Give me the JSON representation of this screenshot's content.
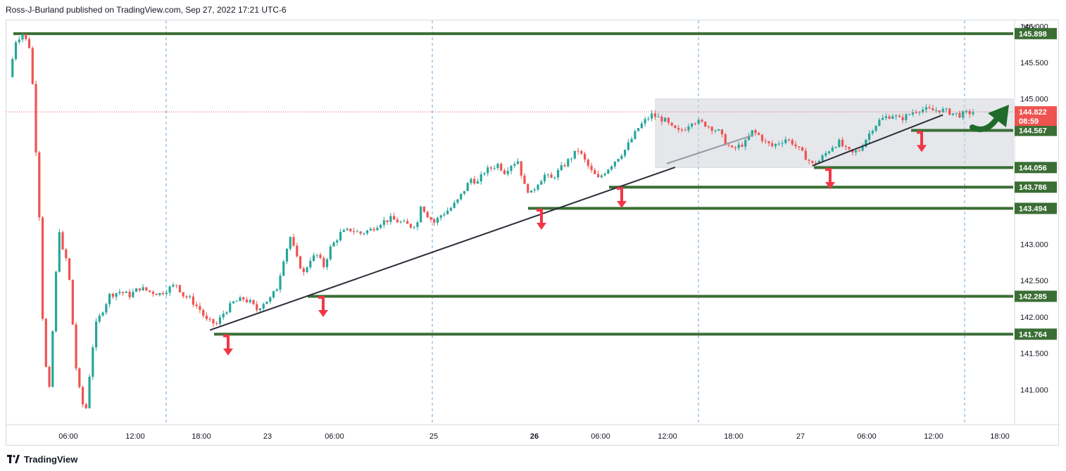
{
  "header": {
    "text": "Ross-J-Burland published on TradingView.com, Sep 27, 2022 17:21 UTC-6"
  },
  "footer": {
    "brand": "TradingView",
    "logo_icon": "tradingview-logo-icon"
  },
  "colors": {
    "level": "#3b6e35",
    "up": "#26a69a",
    "down": "#ef5350",
    "trendline": "#2a2e39",
    "range_fill": "#d1d4dc",
    "arrow_red": "#f23645",
    "arrow_green": "#1f6b2a",
    "grid_dash": "#2a7fcf"
  },
  "chart_data": {
    "type": "candlestick",
    "currency": "JPY",
    "y_ticks": [
      "146.000",
      "145.500",
      "145.000",
      "143.000",
      "142.500",
      "142.000",
      "141.500",
      "141.000"
    ],
    "ylim": [
      140.52,
      146.08
    ],
    "x_ticks": [
      "06:00",
      "12:00",
      "18:00",
      "23",
      "06:00",
      "25",
      "26",
      "06:00",
      "12:00",
      "18:00",
      "27",
      "06:00",
      "12:00",
      "18:00"
    ],
    "x_ticks_bold": [
      "26"
    ],
    "levels": [
      145.898,
      144.567,
      144.056,
      143.786,
      143.494,
      142.285,
      141.764
    ],
    "current_price": "144.822",
    "countdown": "08:59",
    "consolidation_range": [
      144.056,
      145.0
    ],
    "close_path": [
      [
        0,
        145.3
      ],
      [
        2,
        145.8
      ],
      [
        4,
        145.9
      ],
      [
        6,
        145.72
      ],
      [
        7,
        145.2
      ],
      [
        8,
        144.3
      ],
      [
        9,
        143.4
      ],
      [
        10,
        142.0
      ],
      [
        11,
        141.3
      ],
      [
        12,
        141.0
      ],
      [
        13,
        141.8
      ],
      [
        14,
        142.6
      ],
      [
        15,
        143.2
      ],
      [
        16,
        142.9
      ],
      [
        17,
        142.8
      ],
      [
        18,
        142.5
      ],
      [
        19,
        141.9
      ],
      [
        20,
        141.3
      ],
      [
        21,
        141.0
      ],
      [
        22,
        140.8
      ],
      [
        23,
        140.75
      ],
      [
        24,
        141.2
      ],
      [
        25,
        141.6
      ],
      [
        26,
        141.9
      ],
      [
        28,
        142.1
      ],
      [
        30,
        142.3
      ],
      [
        33,
        142.35
      ],
      [
        36,
        142.3
      ],
      [
        39,
        142.4
      ],
      [
        42,
        142.35
      ],
      [
        45,
        142.32
      ],
      [
        48,
        142.4
      ],
      [
        50,
        142.45
      ],
      [
        52,
        142.3
      ],
      [
        54,
        142.25
      ],
      [
        57,
        142.1
      ],
      [
        59,
        141.95
      ],
      [
        62,
        141.9
      ],
      [
        64,
        142.05
      ],
      [
        67,
        142.2
      ],
      [
        70,
        142.25
      ],
      [
        72,
        142.2
      ],
      [
        74,
        142.1
      ],
      [
        76,
        142.2
      ],
      [
        78,
        142.25
      ],
      [
        80,
        142.4
      ],
      [
        82,
        142.8
      ],
      [
        84,
        143.1
      ],
      [
        86,
        142.8
      ],
      [
        88,
        142.6
      ],
      [
        90,
        142.8
      ],
      [
        92,
        142.85
      ],
      [
        94,
        142.7
      ],
      [
        96,
        142.95
      ],
      [
        99,
        143.15
      ],
      [
        102,
        143.2
      ],
      [
        105,
        143.15
      ],
      [
        108,
        143.2
      ],
      [
        111,
        143.3
      ],
      [
        114,
        143.35
      ],
      [
        117,
        143.3
      ],
      [
        120,
        143.25
      ],
      [
        122,
        143.3
      ],
      [
        123,
        143.55
      ],
      [
        125,
        143.4
      ],
      [
        127,
        143.3
      ],
      [
        129,
        143.4
      ],
      [
        132,
        143.5
      ],
      [
        134,
        143.6
      ],
      [
        136,
        143.75
      ],
      [
        138,
        143.9
      ],
      [
        140,
        143.85
      ],
      [
        142,
        144.0
      ],
      [
        144,
        144.05
      ],
      [
        146,
        144.1
      ],
      [
        148,
        144.0
      ],
      [
        150,
        144.1
      ],
      [
        152,
        144.15
      ],
      [
        154,
        143.8
      ],
      [
        156,
        143.7
      ],
      [
        158,
        143.85
      ],
      [
        160,
        143.95
      ],
      [
        162,
        143.9
      ],
      [
        164,
        144.0
      ],
      [
        166,
        144.1
      ],
      [
        168,
        144.2
      ],
      [
        170,
        144.3
      ],
      [
        172,
        144.15
      ],
      [
        174,
        144.0
      ],
      [
        176,
        143.9
      ],
      [
        178,
        144.0
      ],
      [
        180,
        144.1
      ],
      [
        182,
        144.2
      ],
      [
        184,
        144.3
      ],
      [
        186,
        144.45
      ],
      [
        188,
        144.6
      ],
      [
        190,
        144.7
      ],
      [
        192,
        144.78
      ],
      [
        194,
        144.74
      ],
      [
        196,
        144.7
      ],
      [
        198,
        144.6
      ],
      [
        200,
        144.55
      ],
      [
        202,
        144.6
      ],
      [
        204,
        144.7
      ],
      [
        206,
        144.68
      ],
      [
        208,
        144.65
      ],
      [
        210,
        144.6
      ],
      [
        212,
        144.55
      ],
      [
        214,
        144.4
      ],
      [
        216,
        144.3
      ],
      [
        218,
        144.35
      ],
      [
        220,
        144.4
      ],
      [
        222,
        144.55
      ],
      [
        224,
        144.5
      ],
      [
        226,
        144.4
      ],
      [
        228,
        144.35
      ],
      [
        230,
        144.4
      ],
      [
        232,
        144.45
      ],
      [
        234,
        144.4
      ],
      [
        236,
        144.3
      ],
      [
        238,
        144.2
      ],
      [
        240,
        144.1
      ],
      [
        242,
        144.15
      ],
      [
        244,
        144.25
      ],
      [
        246,
        144.35
      ],
      [
        248,
        144.4
      ],
      [
        250,
        144.3
      ],
      [
        252,
        144.25
      ],
      [
        254,
        144.3
      ],
      [
        256,
        144.45
      ],
      [
        258,
        144.6
      ],
      [
        260,
        144.7
      ],
      [
        262,
        144.75
      ],
      [
        264,
        144.78
      ],
      [
        266,
        144.72
      ],
      [
        268,
        144.76
      ],
      [
        270,
        144.82
      ],
      [
        272,
        144.86
      ],
      [
        274,
        144.85
      ],
      [
        276,
        144.84
      ],
      [
        278,
        144.85
      ],
      [
        280,
        144.83
      ],
      [
        282,
        144.8
      ],
      [
        284,
        144.78
      ],
      [
        286,
        144.8
      ],
      [
        288,
        144.82
      ]
    ],
    "trendlines": [
      [
        [
          60,
          141.82
        ],
        [
          199,
          144.06
        ]
      ],
      [
        [
          240,
          144.08
        ],
        [
          279,
          144.78
        ]
      ]
    ]
  }
}
